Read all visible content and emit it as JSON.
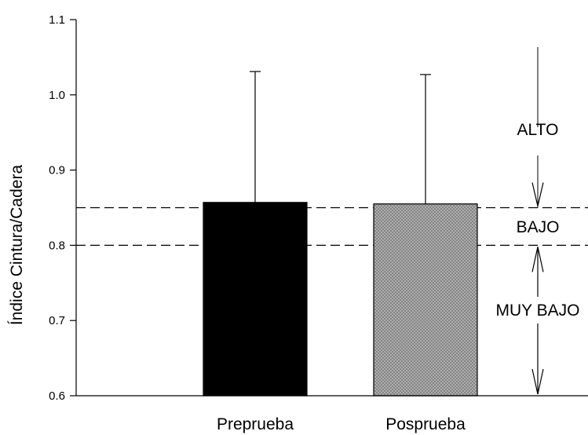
{
  "chart_data": {
    "type": "bar",
    "categories": [
      "Preprueba",
      "Posprueba"
    ],
    "values": [
      0.857,
      0.855
    ],
    "error_upper": [
      1.031,
      1.027
    ],
    "bar_fills": [
      "solid-black",
      "gray-crosshatch"
    ],
    "ylabel": "Índice Cintura/Cadera",
    "xlabel": "",
    "ylim": [
      0.6,
      1.1
    ],
    "yticks": [
      "0.6",
      "0.7",
      "0.8",
      "0.9",
      "1.0",
      "1.1"
    ],
    "reference_lines": [
      0.85,
      0.8
    ],
    "zones": [
      {
        "label": "ALTO",
        "from": 0.85,
        "to": 1.1
      },
      {
        "label": "BAJO",
        "from": 0.8,
        "to": 0.85
      },
      {
        "label": "MUY BAJO",
        "from": 0.6,
        "to": 0.8
      }
    ],
    "grid": false,
    "colors": {
      "bar1": "#000000",
      "bar2": "#b9b9b9",
      "axis": "#000000"
    }
  }
}
